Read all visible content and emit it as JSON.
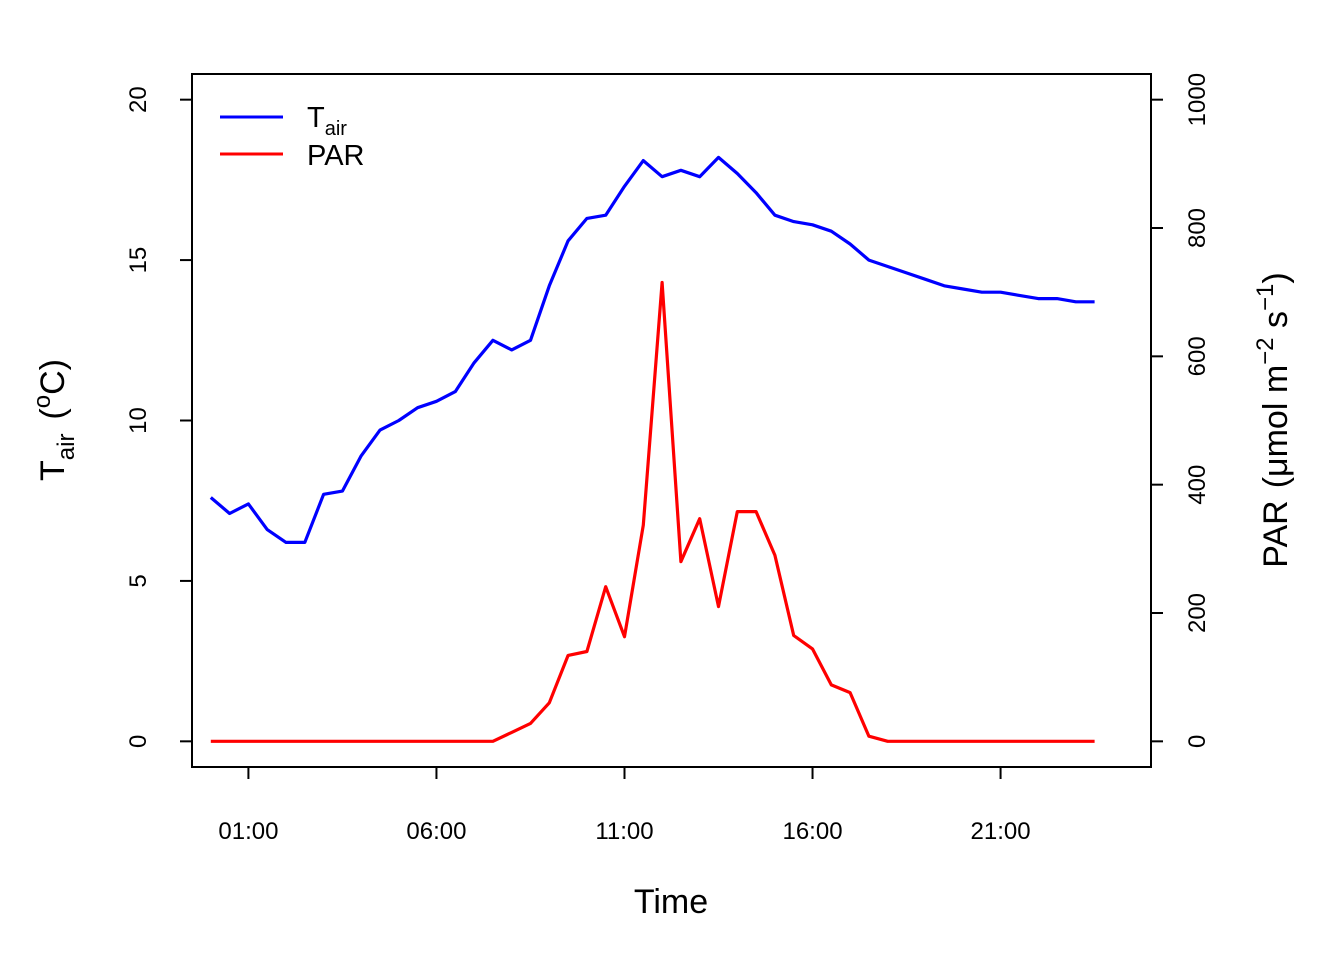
{
  "chart_data": {
    "type": "line",
    "xlabel": "Time",
    "ylabel_left": {
      "main": "T",
      "sub": "air",
      "unit_open": "(",
      "unit_sup": "o",
      "unit_main": "C)"
    },
    "ylabel_right": {
      "main": "PAR",
      "unit_open": "(μmol m",
      "unit_sup1": "−2",
      "unit_mid": " s",
      "unit_sup2": "−1",
      "unit_close": ")"
    },
    "x_ticks": [
      {
        "hour": 1,
        "label": "01:00"
      },
      {
        "hour": 6,
        "label": "06:00"
      },
      {
        "hour": 11,
        "label": "11:00"
      },
      {
        "hour": 16,
        "label": "16:00"
      },
      {
        "hour": 21,
        "label": "21:00"
      }
    ],
    "xlim": [
      -0.5,
      25
    ],
    "ylim_left": [
      -0.8,
      20.8
    ],
    "ylim_right": [
      -40,
      1040
    ],
    "yticks_left": [
      0,
      5,
      10,
      15,
      20
    ],
    "yticks_right": [
      0,
      200,
      400,
      600,
      800,
      1000
    ],
    "x": [
      0,
      0.5,
      1,
      1.5,
      2,
      2.5,
      3,
      3.5,
      4,
      4.5,
      5,
      5.5,
      6,
      6.5,
      7,
      7.5,
      8,
      8.5,
      9,
      9.5,
      10,
      10.5,
      11,
      11.5,
      12,
      12.5,
      13,
      13.5,
      14,
      14.5,
      15,
      15.5,
      16,
      16.5,
      17,
      17.5,
      18,
      18.5,
      19,
      19.5,
      20,
      20.5,
      21,
      21.5,
      22,
      22.5,
      23,
      23.5
    ],
    "series": [
      {
        "name": "T",
        "name_sub": "air",
        "axis": "left",
        "color": "#0000ff",
        "values": [
          7.6,
          7.1,
          7.4,
          6.6,
          6.2,
          6.2,
          7.7,
          7.8,
          8.9,
          9.7,
          10.0,
          10.4,
          10.6,
          10.9,
          11.8,
          12.5,
          12.2,
          12.5,
          14.2,
          15.6,
          16.3,
          16.4,
          17.3,
          18.1,
          17.6,
          17.8,
          17.6,
          18.2,
          17.7,
          17.1,
          16.4,
          16.2,
          16.1,
          15.9,
          15.5,
          15.0,
          14.8,
          14.6,
          14.4,
          14.2,
          14.1,
          14.0,
          14.0,
          13.9,
          13.8,
          13.8,
          13.7,
          13.7
        ]
      },
      {
        "name": "PAR",
        "axis": "right",
        "color": "#ff0000",
        "values": [
          0,
          0,
          0,
          0,
          0,
          0,
          0,
          0,
          0,
          0,
          0,
          0,
          0,
          0,
          0,
          0,
          14,
          28,
          60,
          134,
          140,
          241,
          163,
          337,
          715,
          280,
          347,
          210,
          358,
          358,
          290,
          165,
          144,
          88,
          76,
          8,
          0,
          0,
          0,
          0,
          0,
          0,
          0,
          0,
          0,
          0,
          0,
          0
        ]
      }
    ],
    "legend_placement": "top-left",
    "grid": false
  }
}
